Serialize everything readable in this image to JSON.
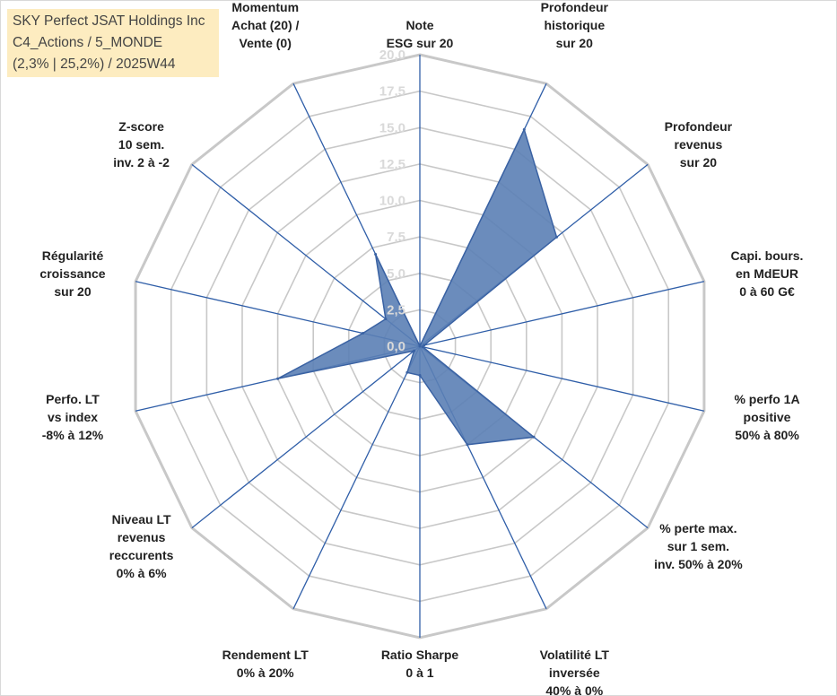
{
  "title": {
    "line1": "SKY Perfect JSAT Holdings Inc",
    "line2": "C4_Actions / 5_MONDE",
    "line3": "(2,3% | 25,2%) / 2025W44"
  },
  "colors": {
    "fill": "#5b7fb5",
    "stroke": "#3a62a3",
    "axis": "#2f5ea8",
    "grid": "#c8c8c8",
    "tick": "#d9d9d9"
  },
  "chart_data": {
    "type": "radar",
    "rmax": 20,
    "ticks": [
      "0,0",
      "2,5",
      "5,0",
      "7,5",
      "10,0",
      "12,5",
      "15,0",
      "17,5",
      "20,0"
    ],
    "axes": [
      {
        "label": [
          "Note",
          "ESG sur 20"
        ],
        "value": 0
      },
      {
        "label": [
          "Profondeur",
          "historique",
          "sur 20"
        ],
        "value": 16.5
      },
      {
        "label": [
          "Profondeur",
          "revenus",
          "sur 20"
        ],
        "value": 12.0
      },
      {
        "label": [
          "Capi. bours.",
          "en MdEUR",
          "0 à 60 G€"
        ],
        "value": 0.3
      },
      {
        "label": [
          "% perfo 1A",
          "positive",
          "50% à 80%"
        ],
        "value": 0.2
      },
      {
        "label": [
          "% perte max.",
          "sur 1 sem.",
          "inv. 50% à 20%"
        ],
        "value": 10.0
      },
      {
        "label": [
          "Volatilité LT",
          "inversée",
          "40% à 0%"
        ],
        "value": 7.5
      },
      {
        "label": [
          "Ratio Sharpe",
          "0 à 1"
        ],
        "value": 2.0
      },
      {
        "label": [
          "Rendement LT",
          "0% à 20%"
        ],
        "value": 2.0
      },
      {
        "label": [
          "Niveau LT",
          "revenus",
          "reccurents",
          "0% à 6%"
        ],
        "value": 0.5
      },
      {
        "label": [
          "Perfo. LT",
          "vs index",
          "-8% à 12%"
        ],
        "value": 10.0
      },
      {
        "label": [
          "Régularité",
          "croissance",
          "sur 20"
        ],
        "value": 4.0
      },
      {
        "label": [
          "Z-score",
          "10 sem.",
          "inv. 2 à -2"
        ],
        "value": 3.0
      },
      {
        "label": [
          "Momentum",
          "Achat (20) /",
          "Vente (0)"
        ],
        "value": 7.0
      }
    ]
  }
}
